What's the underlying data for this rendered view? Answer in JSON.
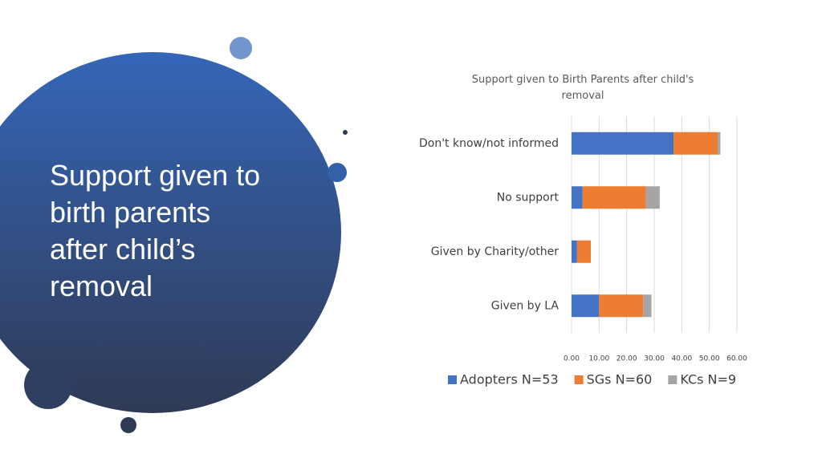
{
  "slide_title_lines": [
    "Support given to",
    "birth parents",
    "after child’s",
    "removal"
  ],
  "chart_data": {
    "type": "stacked-bar-horizontal",
    "title": "Support given to Birth Parents after child's removal",
    "categories": [
      "Don't know/not informed",
      "No support",
      "Given by Charity/other",
      "Given by LA"
    ],
    "series": [
      {
        "name": "Adopters N=53",
        "color": "#4472c4",
        "values": [
          37,
          4,
          2,
          10
        ]
      },
      {
        "name": "SGs N=60",
        "color": "#ed7d31",
        "values": [
          16,
          23,
          5,
          16
        ]
      },
      {
        "name": "KCs N=9",
        "color": "#a5a5a5",
        "values": [
          1,
          5,
          0,
          3
        ]
      }
    ],
    "xlim": [
      0,
      60
    ],
    "xticks": [
      {
        "value": 0,
        "label": "0.00"
      },
      {
        "value": 10,
        "label": "10.00"
      },
      {
        "value": 20,
        "label": "20.00"
      },
      {
        "value": 30,
        "label": "30.00"
      },
      {
        "value": 40,
        "label": "40.00"
      },
      {
        "value": 50,
        "label": "50.00"
      },
      {
        "value": 60,
        "label": "60.00"
      }
    ],
    "grid": true,
    "legend": "bottom"
  }
}
